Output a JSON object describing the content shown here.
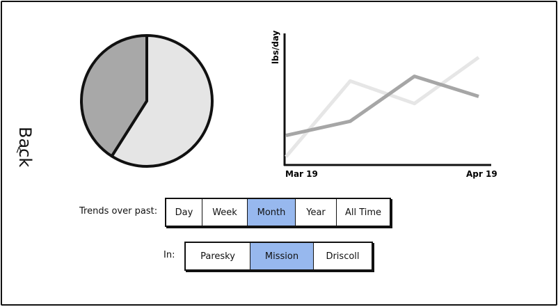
{
  "back": {
    "label": "Back",
    "chevron": "<"
  },
  "pie": {
    "slices": [
      {
        "value": 59,
        "color": "#e5e5e5"
      },
      {
        "value": 41,
        "color": "#a8a8a8"
      }
    ]
  },
  "chart_data": {
    "type": "line",
    "ylabel": "lbs/day",
    "x_ticks": [
      "Mar 19",
      "Apr 19"
    ],
    "x": [
      0,
      1,
      2,
      3
    ],
    "series": [
      {
        "values": [
          22,
          34,
          72,
          55
        ],
        "color": "#a6a6a6"
      },
      {
        "values": [
          4,
          68,
          49,
          88
        ],
        "color": "#e6e6e6"
      }
    ],
    "ylim": [
      0,
      100
    ]
  },
  "trends": {
    "label": "Trends over past:",
    "options": [
      "Day",
      "Week",
      "Month",
      "Year",
      "All Time"
    ],
    "selected": "Month"
  },
  "location": {
    "label": "In:",
    "options": [
      "Paresky",
      "Mission",
      "Driscoll"
    ],
    "selected": "Mission"
  }
}
